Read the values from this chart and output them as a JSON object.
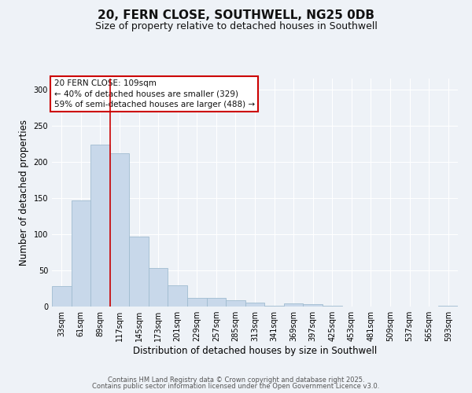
{
  "title": "20, FERN CLOSE, SOUTHWELL, NG25 0DB",
  "subtitle": "Size of property relative to detached houses in Southwell",
  "xlabel": "Distribution of detached houses by size in Southwell",
  "ylabel": "Number of detached properties",
  "bar_labels": [
    "33sqm",
    "61sqm",
    "89sqm",
    "117sqm",
    "145sqm",
    "173sqm",
    "201sqm",
    "229sqm",
    "257sqm",
    "285sqm",
    "313sqm",
    "341sqm",
    "369sqm",
    "397sqm",
    "425sqm",
    "453sqm",
    "481sqm",
    "509sqm",
    "537sqm",
    "565sqm",
    "593sqm"
  ],
  "bar_heights": [
    28,
    147,
    224,
    212,
    97,
    53,
    29,
    12,
    12,
    9,
    5,
    1,
    4,
    3,
    1,
    0,
    0,
    0,
    0,
    0,
    1
  ],
  "bar_color": "#c8d8ea",
  "bar_edge_color": "#a0bcd0",
  "ylim": [
    0,
    315
  ],
  "yticks": [
    0,
    50,
    100,
    150,
    200,
    250,
    300
  ],
  "vline_position": 2.5,
  "vline_color": "#cc0000",
  "annotation_title": "20 FERN CLOSE: 109sqm",
  "annotation_line1": "← 40% of detached houses are smaller (329)",
  "annotation_line2": "59% of semi-detached houses are larger (488) →",
  "annotation_box_color": "#ffffff",
  "annotation_box_edge": "#cc0000",
  "background_color": "#eef2f7",
  "grid_color": "#ffffff",
  "footer1": "Contains HM Land Registry data © Crown copyright and database right 2025.",
  "footer2": "Contains public sector information licensed under the Open Government Licence v3.0.",
  "title_fontsize": 11,
  "subtitle_fontsize": 9,
  "axis_label_fontsize": 8.5,
  "tick_fontsize": 7,
  "annotation_fontsize": 7.5,
  "footer_fontsize": 6
}
